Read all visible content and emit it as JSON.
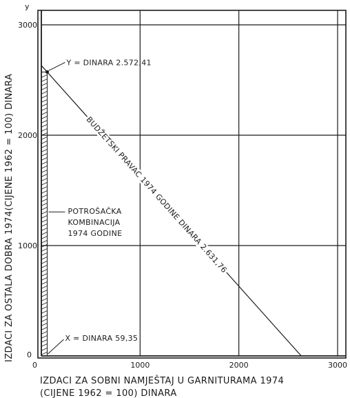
{
  "chart_data": {
    "type": "line",
    "y_axis_symbol": "y",
    "xlabel_line1": "IZDACI ZA SOBNI NAMJEŠTAJ U GARNITURAMA 1974",
    "xlabel_line2": "(CIJENE 1962 = 100)  DINARA",
    "ylabel": "IZDACI  ZA  OSTALA  DOBRA  1974(CIJENE 1962 = 100) DINARA",
    "xlim": [
      0,
      3000
    ],
    "ylim": [
      0,
      3000
    ],
    "x_ticks": [
      {
        "value": 0,
        "label": "0"
      },
      {
        "value": 1000,
        "label": "1000"
      },
      {
        "value": 2000,
        "label": "2000"
      },
      {
        "value": 3000,
        "label": "3000"
      }
    ],
    "y_ticks": [
      {
        "value": 0,
        "label": "0"
      },
      {
        "value": 1000,
        "label": "1000"
      },
      {
        "value": 2000,
        "label": "2000"
      },
      {
        "value": 3000,
        "label": "3000"
      }
    ],
    "grid": true,
    "budget_line": {
      "label": "BUDŽETSKI  PRAVAC  1974  GODINE  DINARA  2.631,76",
      "x": [
        0,
        2631.76
      ],
      "y": [
        2631.76,
        0
      ]
    },
    "consumption_point": {
      "x": 59.35,
      "y": 2572.41
    },
    "annotations": {
      "y_point": "Y = DINARA  2.572,41",
      "combination": [
        "POTROŠAČKA",
        "KOMBINACIJA",
        "1974  GODINE"
      ],
      "x_point": "X = DINARA  59,35"
    }
  }
}
